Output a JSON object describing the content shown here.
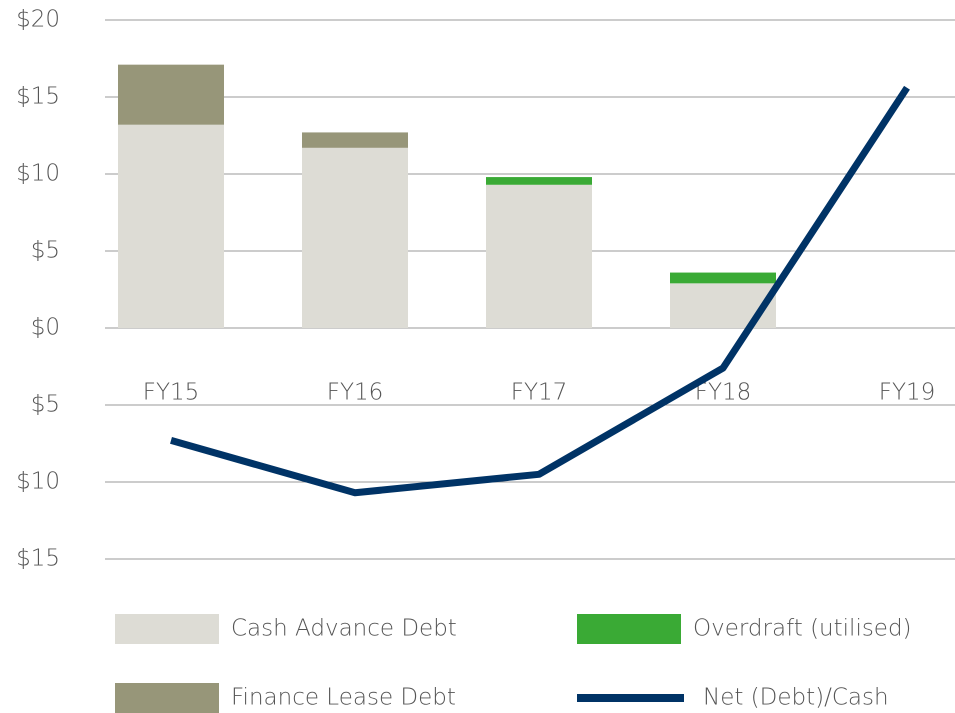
{
  "chart_data": {
    "type": "bar_line",
    "categories": [
      "FY15",
      "FY16",
      "FY17",
      "FY18",
      "FY19"
    ],
    "series": [
      {
        "name": "Cash Advance Debt",
        "color": "#dddcd5",
        "type": "bar",
        "values": [
          13.2,
          11.7,
          9.3,
          2.9,
          null
        ]
      },
      {
        "name": "Finance Lease Debt",
        "color": "#979679",
        "type": "bar",
        "values": [
          3.9,
          1.0,
          null,
          null,
          null
        ]
      },
      {
        "name": "Overdraft (utilised)",
        "color": "#3aaa35",
        "type": "bar",
        "values": [
          null,
          null,
          0.5,
          0.7,
          null
        ]
      },
      {
        "name": "Net (Debt)/Cash",
        "color": "#003366",
        "type": "line",
        "values": [
          -7.3,
          -10.7,
          -9.5,
          -2.6,
          15.6
        ]
      }
    ],
    "ylim": [
      -15,
      20
    ],
    "yticks": [
      {
        "value": -15,
        "label": "$15"
      },
      {
        "value": -10,
        "label": "$10"
      },
      {
        "value": -5,
        "label": "$5"
      },
      {
        "value": 0,
        "label": "$0"
      },
      {
        "value": 5,
        "label": "$5"
      },
      {
        "value": 10,
        "label": "$10"
      },
      {
        "value": 15,
        "label": "$15"
      },
      {
        "value": 20,
        "label": "$20"
      }
    ],
    "grid": true
  }
}
